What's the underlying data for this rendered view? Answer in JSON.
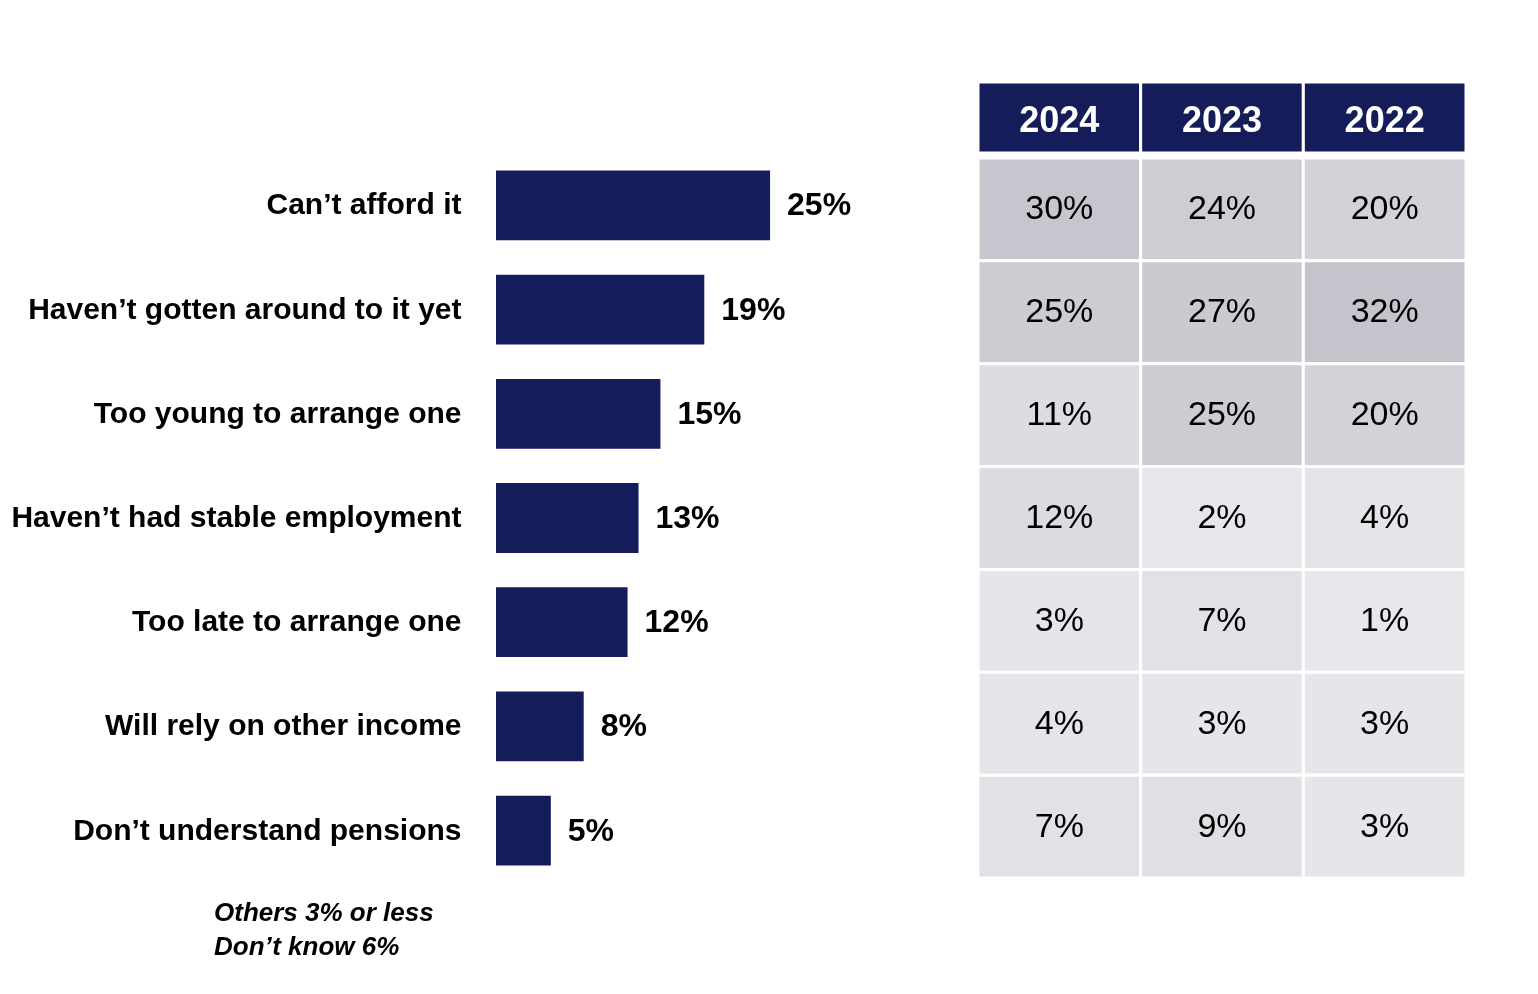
{
  "chart_data": [
    {
      "type": "bar",
      "orientation": "horizontal",
      "color": "#141c5a",
      "categories": [
        "Can’t afford it",
        "Haven’t gotten around to it yet",
        "Too young to arrange one",
        "Haven’t had stable employment",
        "Too late to arrange one",
        "Will rely on other income",
        "Don’t understand pensions"
      ],
      "values": [
        25,
        19,
        15,
        13,
        12,
        8,
        5
      ],
      "value_labels": [
        "25%",
        "19%",
        "15%",
        "13%",
        "12%",
        "8%",
        "5%"
      ],
      "annotations": [
        "Others 3% or less",
        "Don’t know 6%"
      ]
    },
    {
      "type": "heatmap",
      "categories": [
        "2024",
        "2023",
        "2022"
      ],
      "y_categories": [
        null,
        null,
        null,
        null,
        null,
        null,
        null
      ],
      "cells": [
        [
          30,
          24,
          20
        ],
        [
          25,
          27,
          32
        ],
        [
          11,
          25,
          20
        ],
        [
          12,
          2,
          4
        ],
        [
          3,
          7,
          1
        ],
        [
          4,
          3,
          3
        ],
        [
          7,
          9,
          3
        ]
      ],
      "cell_labels": [
        [
          "30%",
          "24%",
          "20%"
        ],
        [
          "25%",
          "27%",
          "32%"
        ],
        [
          "11%",
          "25%",
          "20%"
        ],
        [
          "12%",
          "2%",
          "4%"
        ],
        [
          "3%",
          "7%",
          "1%"
        ],
        [
          "4%",
          "3%",
          "3%"
        ],
        [
          "7%",
          "9%",
          "3%"
        ]
      ]
    }
  ]
}
